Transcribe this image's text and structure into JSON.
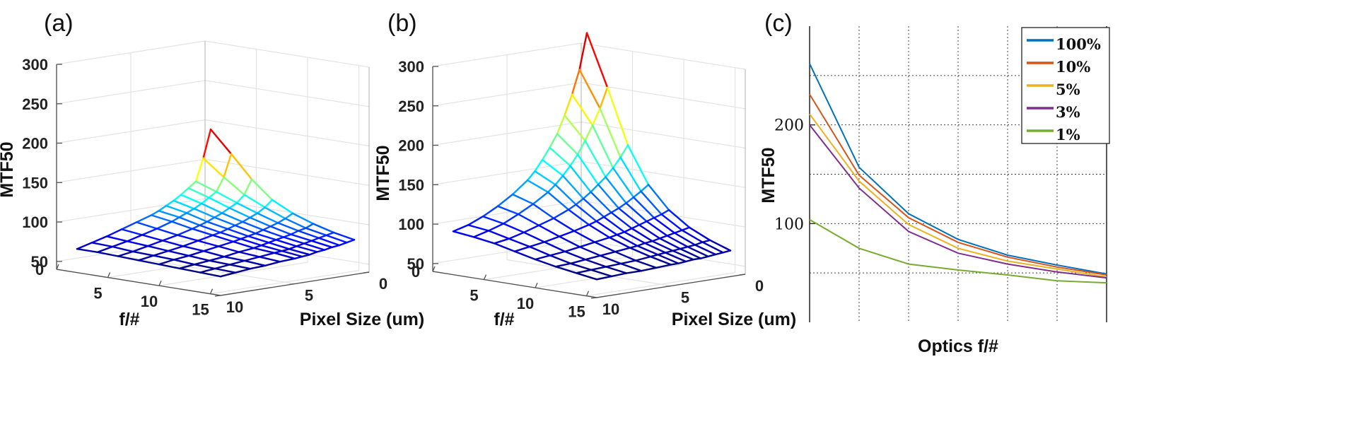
{
  "panels": {
    "a": "(a)",
    "b": "(b)",
    "c": "(c)"
  },
  "chart_data": [
    {
      "id": "a",
      "type": "surface-mesh",
      "zlabel": "MTF50",
      "xlabel": "f/#",
      "ylabel": "Pixel Size (um)",
      "z_ticks": [
        "50",
        "100",
        "150",
        "200",
        "250",
        "300"
      ],
      "x_ticks": [
        "0",
        "5",
        "10",
        "15"
      ],
      "y_ticks": [
        "10",
        "5",
        "0"
      ],
      "zlim": [
        40,
        300
      ],
      "fnum": [
        2,
        4,
        6,
        8,
        10,
        12,
        14,
        16
      ],
      "pixel_size": [
        10,
        9,
        8,
        7,
        6,
        5,
        4.5,
        4,
        3.5,
        3,
        2.5,
        2,
        1.5,
        1
      ],
      "z": [
        [
          70,
          75,
          80,
          86,
          92,
          98,
          102,
          107,
          112,
          118,
          125,
          132,
          160,
          195
        ],
        [
          70,
          74,
          78,
          83,
          88,
          94,
          98,
          102,
          106,
          111,
          117,
          123,
          140,
          168
        ],
        [
          69,
          72,
          76,
          80,
          84,
          89,
          92,
          95,
          99,
          103,
          108,
          113,
          122,
          140
        ],
        [
          68,
          71,
          74,
          77,
          81,
          85,
          87,
          90,
          93,
          96,
          100,
          104,
          110,
          118
        ],
        [
          67,
          70,
          72,
          75,
          78,
          81,
          83,
          85,
          87,
          90,
          93,
          96,
          100,
          105
        ],
        [
          66,
          68,
          70,
          72,
          75,
          77,
          79,
          81,
          83,
          85,
          87,
          90,
          92,
          96
        ],
        [
          65,
          67,
          69,
          71,
          73,
          75,
          76,
          77,
          79,
          81,
          83,
          85,
          87,
          89
        ],
        [
          64,
          66,
          68,
          69,
          71,
          72,
          73,
          74,
          76,
          77,
          79,
          80,
          82,
          84
        ]
      ]
    },
    {
      "id": "b",
      "type": "surface-mesh",
      "zlabel": "MTF50",
      "xlabel": "f/#",
      "ylabel": "Pixel Size (um)",
      "z_ticks": [
        "50",
        "100",
        "150",
        "200",
        "250",
        "300"
      ],
      "x_ticks": [
        "0",
        "5",
        "10",
        "15"
      ],
      "y_ticks": [
        "10",
        "5",
        "0"
      ],
      "zlim": [
        40,
        300
      ],
      "fnum": [
        2,
        4,
        6,
        8,
        10,
        12,
        14,
        16
      ],
      "pixel_size": [
        10,
        9,
        8,
        7,
        6,
        5,
        4.5,
        4,
        3.5,
        3,
        2.5,
        2,
        1.5,
        1
      ],
      "z": [
        [
          95,
          100,
          108,
          118,
          130,
          145,
          155,
          168,
          182,
          198,
          220,
          245,
          275,
          320
        ],
        [
          92,
          97,
          103,
          112,
          122,
          134,
          142,
          152,
          163,
          176,
          192,
          210,
          230,
          255
        ],
        [
          88,
          91,
          96,
          102,
          108,
          116,
          121,
          127,
          134,
          142,
          150,
          160,
          172,
          186
        ],
        [
          82,
          85,
          88,
          92,
          96,
          101,
          104,
          108,
          112,
          116,
          121,
          127,
          133,
          140
        ],
        [
          76,
          78,
          80,
          83,
          86,
          89,
          91,
          93,
          96,
          99,
          102,
          105,
          108,
          112
        ],
        [
          71,
          72,
          74,
          76,
          78,
          80,
          81,
          83,
          84,
          86,
          88,
          90,
          92,
          94
        ],
        [
          67,
          68,
          69,
          70,
          71,
          73,
          74,
          75,
          76,
          77,
          78,
          79,
          81,
          82
        ],
        [
          63,
          64,
          65,
          65,
          66,
          67,
          67,
          68,
          69,
          69,
          70,
          71,
          72,
          73
        ]
      ]
    },
    {
      "id": "c",
      "type": "line",
      "xlabel": "Optics f/#",
      "ylabel": "MTF50",
      "y_ticks": [
        100,
        200
      ],
      "ylim": [
        0,
        300
      ],
      "x": [
        1,
        2,
        3,
        4,
        5,
        6,
        7
      ],
      "grid": true,
      "legend": "top-right",
      "series": [
        {
          "name": "100%",
          "color": "#0072BD",
          "values": [
            262,
            157,
            110,
            84,
            68,
            58,
            49
          ]
        },
        {
          "name": "10%",
          "color": "#D95319",
          "values": [
            231,
            149,
            106,
            81,
            66,
            56,
            48
          ]
        },
        {
          "name": "5%",
          "color": "#EDB120",
          "values": [
            211,
            143,
            99,
            75,
            62,
            54,
            46
          ]
        },
        {
          "name": "3%",
          "color": "#7E2F8E",
          "values": [
            200,
            136,
            92,
            70,
            59,
            51,
            45
          ]
        },
        {
          "name": "1%",
          "color": "#77AC30",
          "values": [
            104,
            75,
            59,
            53,
            48,
            42,
            40
          ]
        }
      ]
    }
  ]
}
